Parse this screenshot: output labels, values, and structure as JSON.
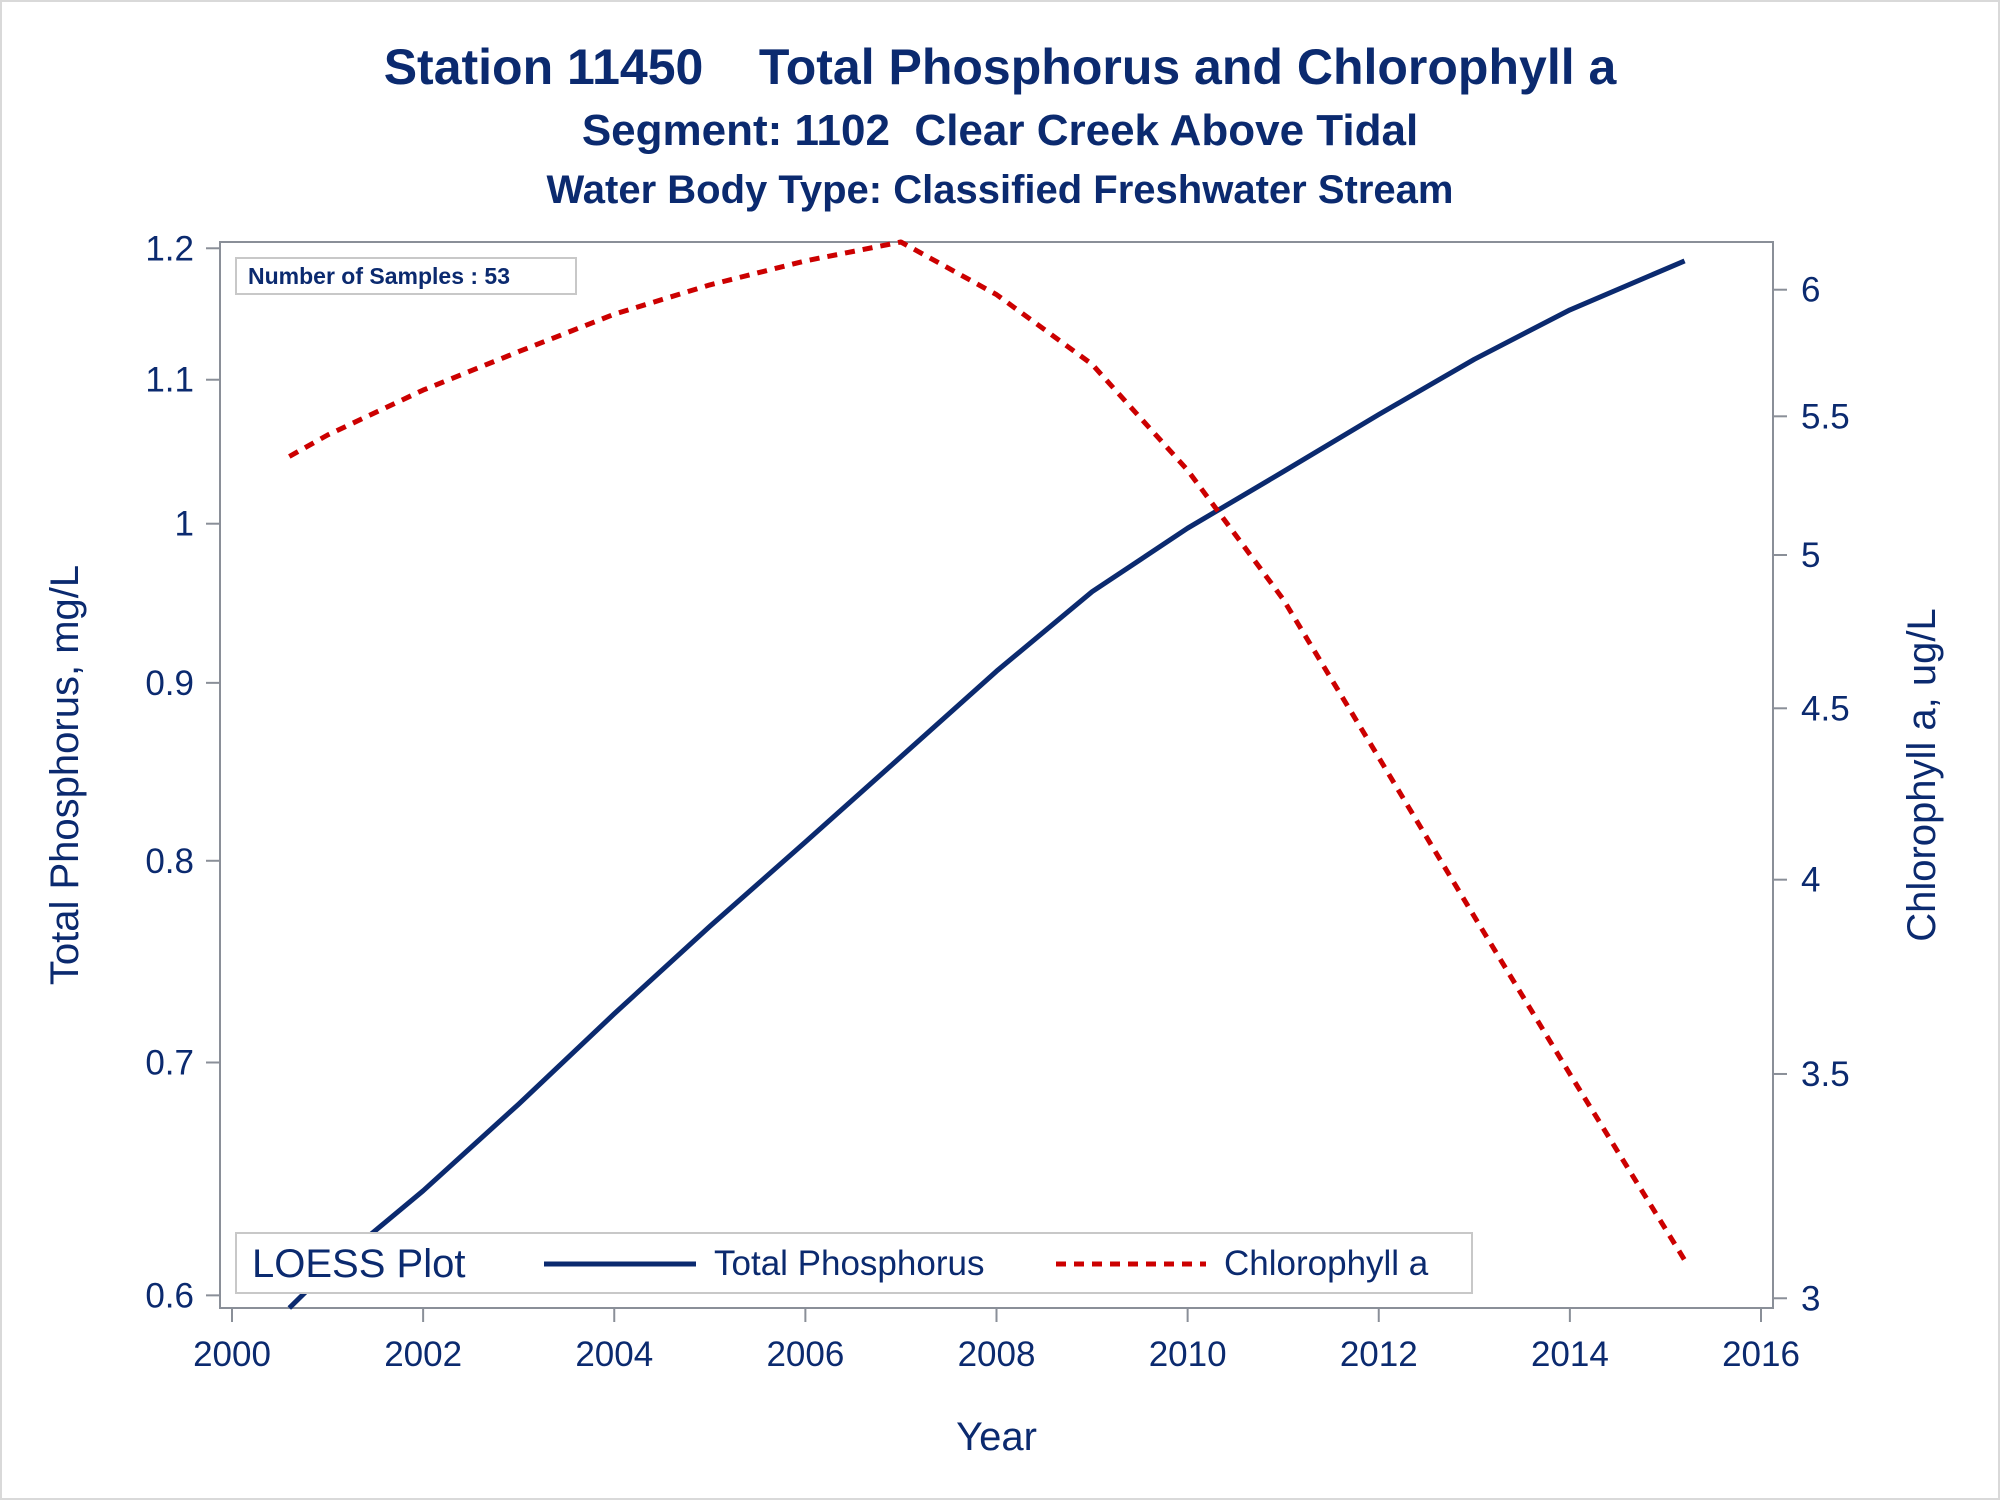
{
  "titles": {
    "line1": "Station 11450    Total Phosphorus and Chlorophyll a",
    "line2": "Segment: 1102  Clear Creek Above Tidal",
    "line3": "Water Body Type: Classified Freshwater Stream"
  },
  "colors": {
    "text": "#0b2a6f",
    "phosphorus": "#0b2a6f",
    "chlorophyll": "#cc0000",
    "axis": "#8a8f98"
  },
  "chart_data": {
    "type": "line",
    "title": "Station 11450    Total Phosphorus and Chlorophyll a",
    "subtitle": [
      "Segment: 1102  Clear Creek Above Tidal",
      "Water Body Type: Classified Freshwater Stream"
    ],
    "xlabel": "Year",
    "ylabel": "Total Phosphorus, mg/L",
    "y2label": "Chlorophyll a, ug/L",
    "y_scale": "log",
    "y2_scale": "log",
    "xlim": [
      2000,
      2016
    ],
    "ylim": [
      0.595,
      1.205
    ],
    "y2lim": [
      2.98,
      6.2
    ],
    "x_ticks": [
      2000,
      2002,
      2004,
      2006,
      2008,
      2010,
      2012,
      2014,
      2016
    ],
    "y_ticks": [
      0.6,
      0.7,
      0.8,
      0.9,
      1,
      1.1,
      1.2
    ],
    "y2_ticks": [
      3,
      3.5,
      4,
      4.5,
      5,
      5.5,
      6
    ],
    "annotation": "Number of Samples : 53",
    "legend": {
      "title": "LOESS Plot",
      "position": "bottom-inside",
      "entries": [
        "Total Phosphorus",
        "Chlorophyll a"
      ]
    },
    "grid": false,
    "series": [
      {
        "name": "Total Phosphorus",
        "axis": "left",
        "style": "solid",
        "x": [
          2000.6,
          2001,
          2002,
          2003,
          2004,
          2005,
          2006,
          2007,
          2008,
          2009,
          2010,
          2011,
          2012,
          2013,
          2014,
          2015.2
        ],
        "y": [
          0.595,
          0.61,
          0.643,
          0.681,
          0.723,
          0.766,
          0.81,
          0.857,
          0.907,
          0.956,
          0.997,
          1.035,
          1.075,
          1.115,
          1.152,
          1.19
        ]
      },
      {
        "name": "Chlorophyll a",
        "axis": "right",
        "style": "dashed",
        "x": [
          2000.6,
          2001,
          2002,
          2003,
          2004,
          2005,
          2006,
          2007,
          2008,
          2009,
          2010,
          2011,
          2012,
          2013,
          2014,
          2015.2
        ],
        "y": [
          5.35,
          5.43,
          5.6,
          5.75,
          5.9,
          6.02,
          6.12,
          6.2,
          5.98,
          5.7,
          5.3,
          4.85,
          4.35,
          3.9,
          3.5,
          3.08
        ]
      }
    ]
  }
}
